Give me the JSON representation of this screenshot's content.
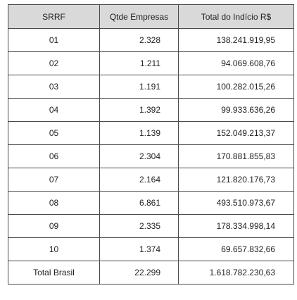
{
  "table": {
    "headers": [
      "SRRF",
      "Qtde Empresas",
      "Total do Indício R$"
    ],
    "rows": [
      [
        "01",
        "2.328",
        "138.241.919,95"
      ],
      [
        "02",
        "1.211",
        "94.069.608,76"
      ],
      [
        "03",
        "1.191",
        "100.282.015,26"
      ],
      [
        "04",
        "1.392",
        "99.933.636,26"
      ],
      [
        "05",
        "1.139",
        "152.049.213,37"
      ],
      [
        "06",
        "2.304",
        "170.881.855,83"
      ],
      [
        "07",
        "2.164",
        "121.820.176,73"
      ],
      [
        "08",
        "6.861",
        "493.510.973,67"
      ],
      [
        "09",
        "2.335",
        "178.334.998,14"
      ],
      [
        "10",
        "1.374",
        "69.657.832,66"
      ],
      [
        "Total Brasil",
        "22.299",
        "1.618.782.230,63"
      ]
    ]
  }
}
